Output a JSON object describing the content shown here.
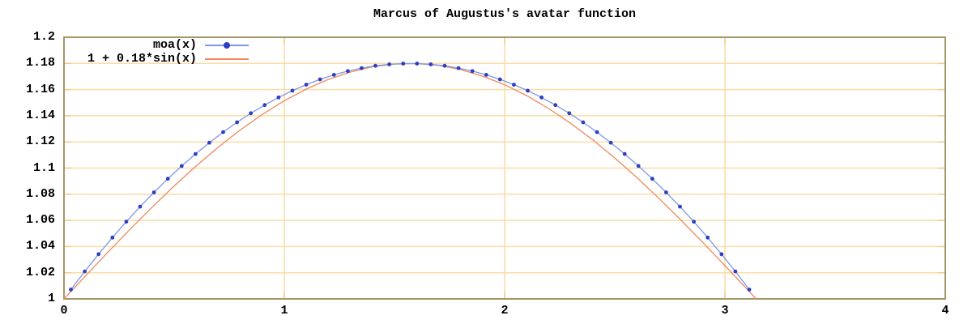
{
  "title": "Marcus of Augustus's avatar function",
  "legend": {
    "position": "top-left-inside",
    "items": [
      {
        "label": "moa(x)",
        "style": "linespoints"
      },
      {
        "label": "1 + 0.18*sin(x)",
        "style": "line"
      }
    ]
  },
  "colors": {
    "background": "#ffffff",
    "border": "#a39768",
    "grid": "#fbdca6",
    "tick": "#f3c98e",
    "moa_line": "#7f97e8",
    "moa_marker": "#2d3ec3",
    "sine_line": "#ed8a5e",
    "text": "#000000"
  },
  "chart_data": {
    "type": "line",
    "title": "Marcus of Augustus's avatar function",
    "xlabel": "",
    "ylabel": "",
    "xlim": [
      0,
      4
    ],
    "ylim": [
      1,
      1.2
    ],
    "grid": true,
    "legend_position": "top-left-inside",
    "xticks": {
      "values": [
        0,
        1,
        2,
        3,
        4
      ],
      "labels": [
        "0",
        "1",
        "2",
        "3",
        "4"
      ]
    },
    "yticks": {
      "values": [
        1,
        1.02,
        1.04,
        1.06,
        1.08,
        1.1,
        1.12,
        1.14,
        1.16,
        1.18,
        1.2
      ],
      "labels": [
        "1",
        "1.02",
        "1.04",
        "1.06",
        "1.08",
        "1.1",
        "1.12",
        "1.14",
        "1.16",
        "1.18",
        "1.2"
      ]
    },
    "series": [
      {
        "name": "moa(x)",
        "style": "linespoints",
        "line_color": "#7f97e8",
        "marker": "circle",
        "marker_color": "#2d3ec3",
        "x": [
          0.0314,
          0.0942,
          0.1571,
          0.2199,
          0.2827,
          0.3456,
          0.4084,
          0.4712,
          0.5341,
          0.5969,
          0.6597,
          0.7226,
          0.7854,
          0.8482,
          0.9111,
          0.9739,
          1.0367,
          1.0996,
          1.1624,
          1.2252,
          1.2881,
          1.3509,
          1.4137,
          1.4765,
          1.5394,
          1.6022,
          1.665,
          1.7279,
          1.7907,
          1.8535,
          1.9164,
          1.9792,
          2.042,
          2.1049,
          2.1677,
          2.2305,
          2.2934,
          2.3562,
          2.419,
          2.4819,
          2.5447,
          2.6075,
          2.6704,
          2.7332,
          2.796,
          2.8588,
          2.9217,
          2.9845,
          3.0473,
          3.1102
        ],
        "y": [
          1.0071,
          1.021,
          1.0342,
          1.0469,
          1.059,
          1.0705,
          1.0814,
          1.0918,
          1.1016,
          1.1108,
          1.1194,
          1.1275,
          1.135,
          1.1419,
          1.1482,
          1.154,
          1.1592,
          1.1638,
          1.1678,
          1.1713,
          1.1741,
          1.1764,
          1.1782,
          1.1793,
          1.1799,
          1.1799,
          1.1793,
          1.1782,
          1.1764,
          1.1741,
          1.1713,
          1.1678,
          1.1638,
          1.1592,
          1.154,
          1.1482,
          1.1419,
          1.135,
          1.1275,
          1.1194,
          1.1108,
          1.1016,
          1.0918,
          1.0814,
          1.0705,
          1.059,
          1.0469,
          1.0342,
          1.021,
          1.0071
        ]
      },
      {
        "name": "1 + 0.18*sin(x)",
        "style": "line",
        "line_color": "#ed8a5e",
        "x": [
          0,
          0.1,
          0.2,
          0.3,
          0.4,
          0.5,
          0.6,
          0.7,
          0.8,
          0.9,
          1.0,
          1.1,
          1.2,
          1.3,
          1.4,
          1.5,
          1.6,
          1.7,
          1.8,
          1.9,
          2.0,
          2.1,
          2.2,
          2.3,
          2.4,
          2.5,
          2.6,
          2.7,
          2.8,
          2.9,
          3.0,
          3.1,
          3.1416
        ],
        "y": [
          1.0,
          1.018,
          1.0358,
          1.0532,
          1.0701,
          1.0863,
          1.1016,
          1.116,
          1.1291,
          1.141,
          1.1515,
          1.1604,
          1.1678,
          1.1734,
          1.1774,
          1.1795,
          1.1799,
          1.1785,
          1.1753,
          1.1703,
          1.1637,
          1.1554,
          1.1455,
          1.1342,
          1.1216,
          1.1077,
          1.0928,
          1.0769,
          1.0603,
          1.0431,
          1.0254,
          1.0075,
          1.0
        ]
      }
    ]
  }
}
